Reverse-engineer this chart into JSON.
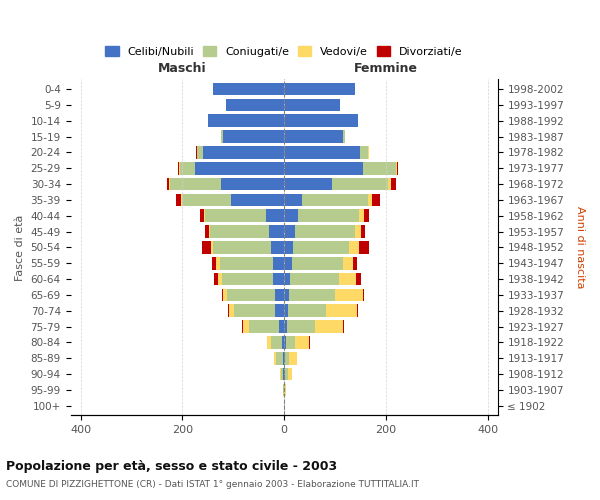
{
  "age_groups": [
    "100+",
    "95-99",
    "90-94",
    "85-89",
    "80-84",
    "75-79",
    "70-74",
    "65-69",
    "60-64",
    "55-59",
    "50-54",
    "45-49",
    "40-44",
    "35-39",
    "30-34",
    "25-29",
    "20-24",
    "15-19",
    "10-14",
    "5-9",
    "0-4"
  ],
  "birth_years": [
    "≤ 1902",
    "1903-1907",
    "1908-1912",
    "1913-1917",
    "1918-1922",
    "1923-1927",
    "1928-1932",
    "1933-1937",
    "1938-1942",
    "1943-1947",
    "1948-1952",
    "1953-1957",
    "1958-1962",
    "1963-1967",
    "1968-1972",
    "1973-1977",
    "1978-1982",
    "1983-1987",
    "1988-1992",
    "1993-1997",
    "1998-2002"
  ],
  "male": {
    "celibi": [
      0,
      0,
      2,
      3,
      5,
      10,
      18,
      18,
      22,
      22,
      25,
      30,
      35,
      105,
      125,
      175,
      160,
      120,
      150,
      115,
      140
    ],
    "coniugati": [
      1,
      2,
      5,
      12,
      20,
      60,
      80,
      95,
      100,
      105,
      115,
      115,
      120,
      95,
      100,
      30,
      12,
      5,
      0,
      0,
      0
    ],
    "vedovi": [
      0,
      1,
      2,
      5,
      8,
      10,
      10,
      8,
      8,
      6,
      4,
      2,
      2,
      2,
      1,
      1,
      0,
      0,
      0,
      0,
      0
    ],
    "divorziati": [
      0,
      0,
      0,
      0,
      1,
      2,
      2,
      2,
      8,
      8,
      18,
      8,
      8,
      10,
      5,
      2,
      1,
      0,
      0,
      0,
      0
    ]
  },
  "female": {
    "nubili": [
      0,
      0,
      2,
      2,
      3,
      5,
      8,
      10,
      12,
      15,
      18,
      22,
      28,
      35,
      95,
      155,
      150,
      115,
      145,
      110,
      140
    ],
    "coniugate": [
      1,
      2,
      5,
      8,
      18,
      55,
      75,
      90,
      95,
      100,
      110,
      118,
      120,
      130,
      110,
      65,
      15,
      5,
      0,
      0,
      0
    ],
    "vedove": [
      0,
      2,
      8,
      15,
      28,
      55,
      60,
      55,
      35,
      20,
      20,
      12,
      10,
      8,
      5,
      2,
      1,
      0,
      0,
      0,
      0
    ],
    "divorziate": [
      0,
      0,
      0,
      1,
      1,
      2,
      2,
      2,
      10,
      8,
      18,
      8,
      8,
      15,
      10,
      2,
      1,
      0,
      0,
      0,
      0
    ]
  },
  "colors": {
    "celibi_nubili": "#4472c4",
    "coniugati": "#b5cc8e",
    "vedovi": "#ffd966",
    "divorziati": "#c00000"
  },
  "xlim": [
    -420,
    420
  ],
  "xticks": [
    -400,
    -200,
    0,
    200,
    400
  ],
  "xticklabels": [
    "400",
    "200",
    "0",
    "200",
    "400"
  ],
  "title": "Popolazione per età, sesso e stato civile - 2003",
  "subtitle": "COMUNE DI PIZZIGHETTONE (CR) - Dati ISTAT 1° gennaio 2003 - Elaborazione TUTTITALIA.IT",
  "ylabel_left": "Fasce di età",
  "ylabel_right": "Anni di nascita",
  "label_maschi": "Maschi",
  "label_femmine": "Femmine",
  "legend_labels": [
    "Celibi/Nubili",
    "Coniugati/e",
    "Vedovi/e",
    "Divorziati/e"
  ],
  "background_color": "#ffffff",
  "bar_height": 0.8
}
